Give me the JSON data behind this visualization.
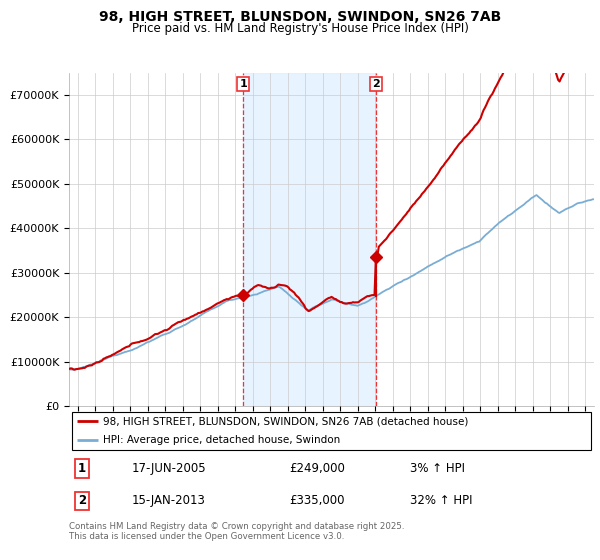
{
  "title1": "98, HIGH STREET, BLUNSDON, SWINDON, SN26 7AB",
  "title2": "Price paid vs. HM Land Registry's House Price Index (HPI)",
  "background_color": "#ffffff",
  "plot_bg_color": "#ffffff",
  "grid_color": "#cccccc",
  "hpi_color": "#7aadd4",
  "price_color": "#cc0000",
  "vline_color": "#ee3333",
  "shade_color": "#ddeeff",
  "marker1_date": 2005.46,
  "marker2_date": 2013.04,
  "marker1_price": 249000,
  "marker2_price": 335000,
  "legend1": "98, HIGH STREET, BLUNSDON, SWINDON, SN26 7AB (detached house)",
  "legend2": "HPI: Average price, detached house, Swindon",
  "annotation1_date": "17-JUN-2005",
  "annotation1_price": "£249,000",
  "annotation1_hpi": "3% ↑ HPI",
  "annotation2_date": "15-JAN-2013",
  "annotation2_price": "£335,000",
  "annotation2_hpi": "32% ↑ HPI",
  "footer": "Contains HM Land Registry data © Crown copyright and database right 2025.\nThis data is licensed under the Open Government Licence v3.0.",
  "ylim": [
    0,
    750000
  ],
  "xlim_start": 1995.5,
  "xlim_end": 2025.5
}
